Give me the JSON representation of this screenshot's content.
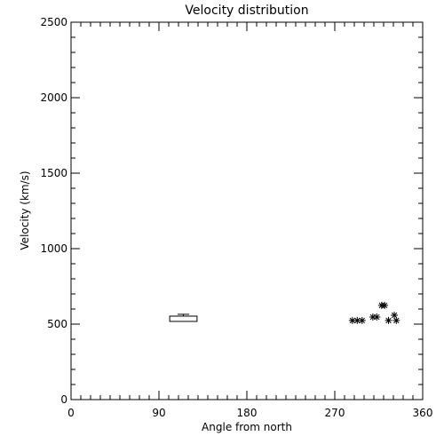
{
  "chart_data": {
    "type": "box-scatter",
    "title": "Velocity distribution",
    "xlabel": "Angle from north",
    "ylabel": "Velocity (km/s)",
    "xlim": [
      0,
      360
    ],
    "xticks": [
      0,
      90,
      180,
      270,
      360
    ],
    "x_minor_step": 10,
    "ylim": [
      0,
      2500
    ],
    "yticks": [
      0,
      500,
      1000,
      1500,
      2000,
      2500
    ],
    "y_minor_step": 100,
    "box": {
      "x_left": 101,
      "x_right": 129,
      "q1": 518,
      "q3": 553,
      "high": 565,
      "cap_left": 109,
      "cap_right": 121
    },
    "points": {
      "x": [
        288,
        293,
        298,
        309,
        313,
        318,
        321,
        325,
        331,
        333
      ],
      "values": [
        524,
        524,
        524,
        547,
        547,
        624,
        624,
        524,
        559,
        524
      ]
    },
    "color": "#000000"
  }
}
